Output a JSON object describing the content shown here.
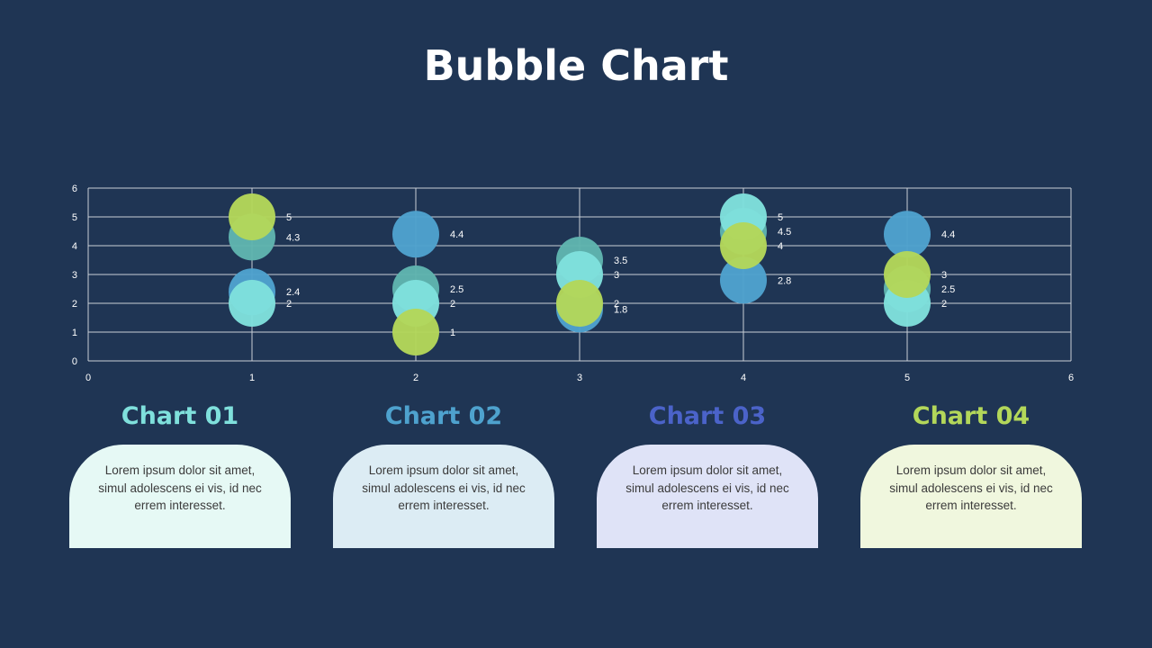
{
  "title": "Bubble Chart",
  "colors": {
    "background": "#1f3554",
    "series1": "#5fb5b0",
    "series2": "#4ea2ce",
    "series3": "#7fe0dc",
    "series4": "#b3d75a"
  },
  "chart_data": {
    "type": "scatter",
    "title": "",
    "xlabel": "",
    "ylabel": "",
    "xlim": [
      0,
      6
    ],
    "ylim": [
      0,
      6
    ],
    "xticks": [
      0,
      1,
      2,
      3,
      4,
      5,
      6
    ],
    "yticks": [
      0,
      1,
      2,
      3,
      4,
      5,
      6
    ],
    "grid": true,
    "series": [
      {
        "color": "#5fb5b0",
        "points": [
          [
            1,
            4.3
          ],
          [
            2,
            2.5
          ],
          [
            3,
            3.5
          ],
          [
            4,
            4.5
          ],
          [
            5,
            2.5
          ]
        ]
      },
      {
        "color": "#4ea2ce",
        "points": [
          [
            1,
            2.4
          ],
          [
            2,
            4.4
          ],
          [
            3,
            1.8
          ],
          [
            4,
            2.8
          ],
          [
            5,
            4.4
          ]
        ]
      },
      {
        "color": "#7fe0dc",
        "points": [
          [
            1,
            2
          ],
          [
            2,
            2
          ],
          [
            3,
            3
          ],
          [
            4,
            5
          ],
          [
            5,
            2
          ]
        ]
      },
      {
        "color": "#b3d75a",
        "points": [
          [
            1,
            5
          ],
          [
            2,
            1
          ],
          [
            3,
            2
          ],
          [
            4,
            4
          ],
          [
            5,
            3
          ]
        ]
      }
    ]
  },
  "cards": [
    {
      "title": "Chart 01",
      "text": "Lorem ipsum dolor sit amet, simul adolescens ei vis, id nec errem interesset.",
      "title_color": "#7fe0dc",
      "bg": "#e6f9f5"
    },
    {
      "title": "Chart 02",
      "text": "Lorem ipsum dolor sit amet, simul adolescens ei vis, id nec errem interesset.",
      "title_color": "#4ea2ce",
      "bg": "#dcecf4"
    },
    {
      "title": "Chart 03",
      "text": "Lorem ipsum dolor sit amet, simul adolescens ei vis, id nec errem interesset.",
      "title_color": "#4b63c9",
      "bg": "#dfe3f7"
    },
    {
      "title": "Chart 04",
      "text": "Lorem ipsum dolor sit amet, simul adolescens ei vis, id nec errem interesset.",
      "title_color": "#b3d75a",
      "bg": "#f0f7de"
    }
  ]
}
